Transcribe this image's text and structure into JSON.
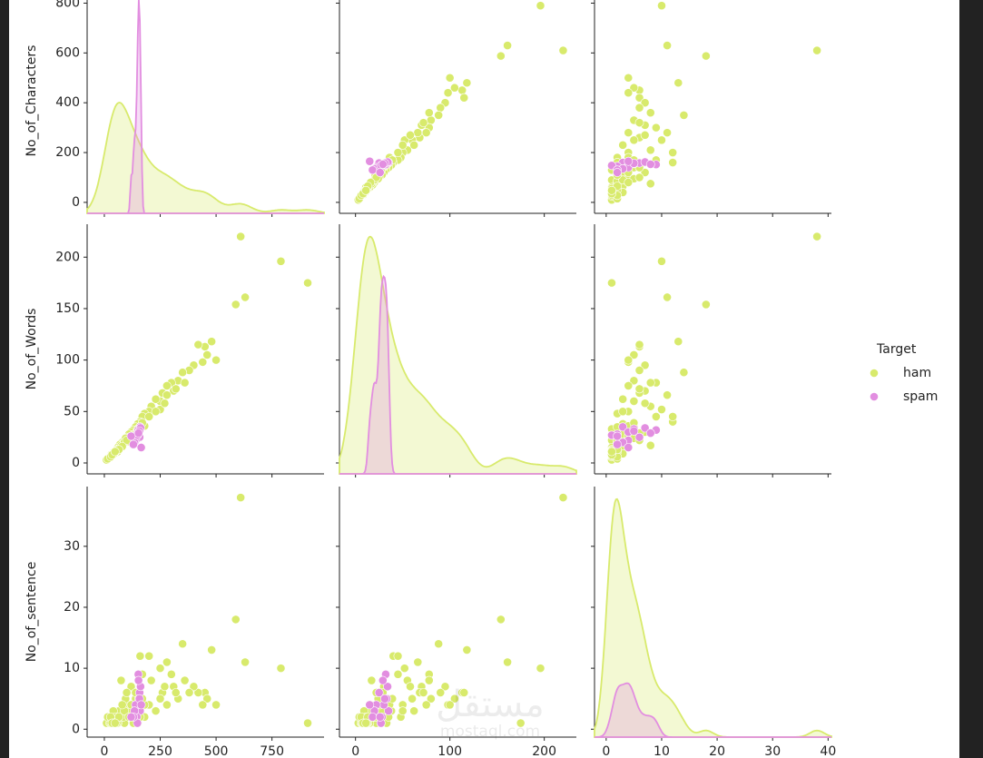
{
  "chart_data": {
    "type": "pairplot",
    "variables": [
      {
        "label": "No_of_Characters",
        "xlim": [
          -77,
          983
        ],
        "ylim": [
          -44,
          860
        ],
        "xticks": [
          0,
          250,
          500,
          750
        ],
        "yticks": [
          0,
          200,
          400,
          600,
          800
        ]
      },
      {
        "label": "No_of_Words",
        "xlim": [
          -17,
          234
        ],
        "ylim": [
          -10.6,
          232
        ],
        "xticks": [
          0,
          100,
          200
        ],
        "yticks": [
          0,
          50,
          100,
          150,
          200
        ]
      },
      {
        "label": "No_of_sentence",
        "xlim": [
          -2.1,
          40.6
        ],
        "ylim": [
          -1.3,
          39.8
        ],
        "xticks": [
          0,
          10,
          20,
          30,
          40
        ],
        "yticks": [
          0,
          10,
          20,
          30
        ]
      }
    ],
    "legend_title": "Target",
    "series": [
      {
        "name": "ham",
        "color": "#d8ea6c",
        "values": [
          [
            910,
            175,
            1
          ],
          [
            610,
            220,
            38
          ],
          [
            790,
            196,
            10
          ],
          [
            630,
            161,
            11
          ],
          [
            588,
            154,
            18
          ],
          [
            480,
            118,
            13
          ],
          [
            450,
            113,
            6
          ],
          [
            420,
            115,
            6
          ],
          [
            460,
            105,
            5
          ],
          [
            440,
            98,
            4
          ],
          [
            400,
            95,
            7
          ],
          [
            380,
            90,
            6
          ],
          [
            350,
            88,
            14
          ],
          [
            330,
            80,
            5
          ],
          [
            300,
            78,
            9
          ],
          [
            310,
            70,
            7
          ],
          [
            280,
            75,
            4
          ],
          [
            260,
            68,
            6
          ],
          [
            250,
            60,
            5
          ],
          [
            230,
            62,
            3
          ],
          [
            210,
            55,
            8
          ],
          [
            200,
            50,
            4
          ],
          [
            180,
            48,
            2
          ],
          [
            170,
            45,
            9
          ],
          [
            160,
            40,
            12
          ],
          [
            150,
            38,
            3
          ],
          [
            140,
            35,
            5
          ],
          [
            130,
            32,
            2
          ],
          [
            120,
            30,
            7
          ],
          [
            110,
            28,
            3
          ],
          [
            100,
            25,
            4
          ],
          [
            90,
            22,
            1
          ],
          [
            80,
            20,
            2
          ],
          [
            70,
            18,
            3
          ],
          [
            60,
            15,
            1
          ],
          [
            50,
            12,
            2
          ],
          [
            40,
            10,
            1
          ],
          [
            30,
            8,
            1
          ],
          [
            20,
            5,
            1
          ],
          [
            10,
            3,
            1
          ],
          [
            45,
            9,
            2
          ],
          [
            65,
            14,
            3
          ],
          [
            85,
            19,
            2
          ],
          [
            120,
            26,
            4
          ],
          [
            95,
            24,
            5
          ],
          [
            75,
            17,
            8
          ],
          [
            55,
            13,
            1
          ],
          [
            35,
            7,
            2
          ],
          [
            250,
            52,
            10
          ],
          [
            280,
            66,
            11
          ],
          [
            200,
            45,
            12
          ],
          [
            320,
            72,
            6
          ],
          [
            360,
            78,
            8
          ],
          [
            140,
            29,
            6
          ],
          [
            230,
            50,
            3
          ],
          [
            180,
            36,
            4
          ],
          [
            150,
            33,
            1
          ],
          [
            25,
            6,
            1
          ],
          [
            15,
            4,
            2
          ],
          [
            60,
            11,
            1
          ],
          [
            90,
            20,
            3
          ],
          [
            110,
            21,
            2
          ],
          [
            170,
            39,
            5
          ],
          [
            270,
            58,
            7
          ],
          [
            500,
            100,
            4
          ],
          [
            160,
            35,
            2
          ],
          [
            130,
            27,
            1
          ],
          [
            100,
            22,
            6
          ],
          [
            40,
            9,
            3
          ],
          [
            80,
            16,
            4
          ],
          [
            30,
            7,
            1
          ],
          [
            45,
            10,
            1
          ],
          [
            50,
            11,
            2
          ],
          [
            38,
            8,
            1
          ],
          [
            28,
            6,
            2
          ],
          [
            55,
            12,
            1
          ],
          [
            42,
            9,
            1
          ],
          [
            65,
            13,
            2
          ],
          [
            35,
            8,
            1
          ],
          [
            48,
            11,
            1
          ]
        ]
      },
      {
        "name": "spam",
        "color": "#e28ee0",
        "values": [
          [
            160,
            35,
            3
          ],
          [
            150,
            30,
            4
          ],
          [
            155,
            33,
            5
          ],
          [
            145,
            28,
            2
          ],
          [
            158,
            25,
            6
          ],
          [
            140,
            22,
            4
          ],
          [
            152,
            32,
            9
          ],
          [
            135,
            20,
            3
          ],
          [
            162,
            34,
            7
          ],
          [
            148,
            27,
            1
          ],
          [
            130,
            18,
            2
          ],
          [
            157,
            31,
            5
          ],
          [
            165,
            15,
            4
          ],
          [
            120,
            26,
            2
          ],
          [
            153,
            29,
            8
          ]
        ]
      }
    ],
    "watermark": {
      "logo": "مستقل",
      "site": "mostaql.com"
    }
  }
}
